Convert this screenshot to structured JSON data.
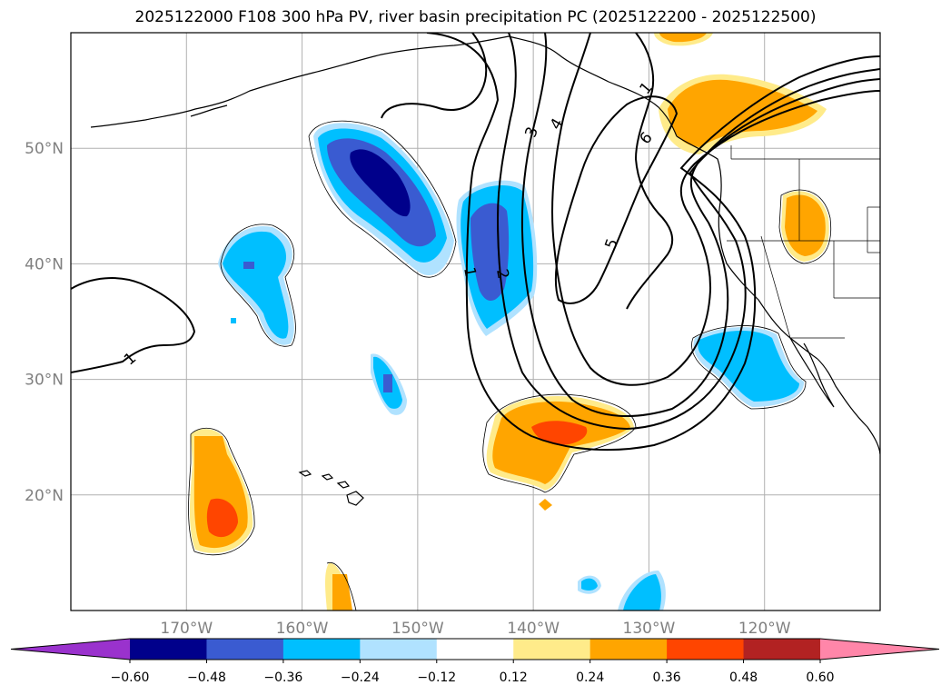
{
  "title": "2025122000 F108 300 hPa PV, river basin precipitation PC (2025122200 - 2025122500)",
  "chart_data": {
    "type": "map",
    "projection": "PlateCarree",
    "lon_range": [
      -180,
      -110
    ],
    "lat_range": [
      10,
      60
    ],
    "gridlines": true,
    "lat_ticks": [
      {
        "value": 20,
        "label": "20°N"
      },
      {
        "value": 30,
        "label": "30°N"
      },
      {
        "value": 40,
        "label": "40°N"
      },
      {
        "value": 50,
        "label": "50°N"
      }
    ],
    "lon_ticks": [
      {
        "value": -170,
        "label": "170°W"
      },
      {
        "value": -160,
        "label": "160°W"
      },
      {
        "value": -150,
        "label": "150°W"
      },
      {
        "value": -140,
        "label": "140°W"
      },
      {
        "value": -130,
        "label": "130°W"
      },
      {
        "value": -120,
        "label": "120°W"
      }
    ],
    "pv_contour_labels": [
      "1",
      "2",
      "3",
      "4",
      "5",
      "6",
      "1",
      "1"
    ],
    "colorbar": {
      "extend": "both",
      "levels": [
        -0.6,
        -0.48,
        -0.36,
        -0.24,
        -0.12,
        0.12,
        0.24,
        0.36,
        0.48,
        0.6
      ],
      "tick_labels": [
        "−0.60",
        "−0.48",
        "−0.36",
        "−0.24",
        "−0.12",
        "0.12",
        "0.24",
        "0.36",
        "0.48",
        "0.60"
      ],
      "colors": [
        "#9a32cd",
        "#00008b",
        "#3a5bd1",
        "#00bfff",
        "#b0e2ff",
        "#ffffff",
        "#ffeb8a",
        "#ffa500",
        "#ff4500",
        "#b22222",
        "#ff86a9"
      ]
    }
  }
}
